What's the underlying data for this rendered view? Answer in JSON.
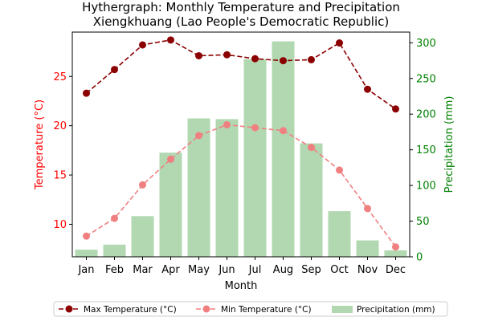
{
  "chart_data": {
    "type": "bar+line",
    "title_line1": "Hythergraph: Monthly Temperature and Precipitation",
    "title_line2": "Xiengkhuang (Lao People's Democratic Republic)",
    "xlabel": "Month",
    "ylabel_left": "Temperature (°C)",
    "ylabel_right": "Precipitation (mm)",
    "categories": [
      "Jan",
      "Feb",
      "Mar",
      "Apr",
      "May",
      "Jun",
      "Jul",
      "Aug",
      "Sep",
      "Oct",
      "Nov",
      "Dec"
    ],
    "y_left_range": [
      6.7,
      29.5
    ],
    "y_left_ticks": [
      10,
      15,
      20,
      25
    ],
    "y_right_range": [
      0,
      315
    ],
    "y_right_ticks": [
      0,
      50,
      100,
      150,
      200,
      250,
      300
    ],
    "series": [
      {
        "name": "Max Temperature (°C)",
        "kind": "line",
        "axis": "left",
        "color": "#8b0000",
        "values": [
          23.3,
          25.7,
          28.2,
          28.7,
          27.1,
          27.2,
          26.8,
          26.6,
          26.7,
          28.4,
          23.7,
          21.7
        ]
      },
      {
        "name": "Min Temperature (°C)",
        "kind": "line",
        "axis": "left",
        "color": "#f08080",
        "values": [
          8.8,
          10.6,
          14.0,
          16.6,
          19.0,
          20.1,
          19.8,
          19.5,
          17.8,
          15.5,
          11.6,
          7.7
        ]
      },
      {
        "name": "Precipitation (mm)",
        "kind": "bar",
        "axis": "right",
        "color": "#b2d8b2",
        "values": [
          10,
          17,
          57,
          146,
          194,
          193,
          277,
          302,
          159,
          64,
          23,
          9
        ]
      }
    ],
    "legend_position": "bottom-center"
  }
}
